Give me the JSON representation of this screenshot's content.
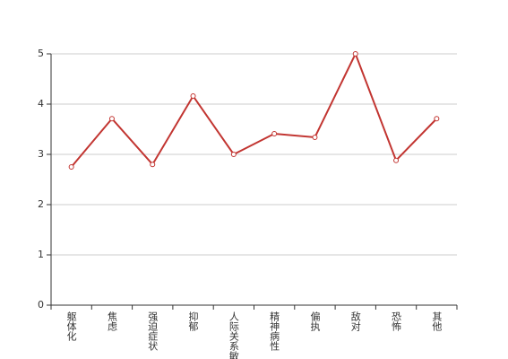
{
  "chart_data": {
    "type": "line",
    "categories": [
      "躯体化",
      "焦虑",
      "强迫症状",
      "抑郁",
      "人际关系敏感",
      "精神病性",
      "偏执",
      "敌对",
      "恐怖",
      "其他"
    ],
    "values": [
      2.75,
      3.71,
      2.8,
      4.16,
      3.0,
      3.41,
      3.34,
      5.0,
      2.88,
      3.71
    ],
    "color": "#c23531",
    "ylim": [
      0,
      5
    ],
    "yticks": [
      0,
      1,
      2,
      3,
      4,
      5
    ],
    "grid": true
  }
}
